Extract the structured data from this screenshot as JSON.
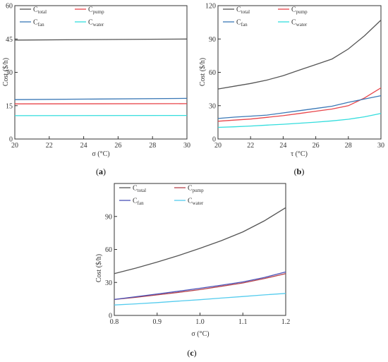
{
  "chart_data": [
    {
      "type": "line",
      "panel_label": "a",
      "x": [
        20,
        30
      ],
      "xlim": [
        20,
        30
      ],
      "ylim": [
        0,
        60
      ],
      "xticks": [
        20,
        22,
        24,
        26,
        28,
        30
      ],
      "yticks": [
        0,
        15,
        30,
        45,
        60
      ],
      "xlabel": "σ (°C)",
      "ylabel": "Cost ($/h)",
      "legend_placement": "top-left",
      "series": [
        {
          "name": "C",
          "sub": "total",
          "color": "#555555",
          "x": [
            20,
            30
          ],
          "values": [
            44.5,
            45.0
          ]
        },
        {
          "name": "C",
          "sub": "pump",
          "color": "#e8454a",
          "x": [
            20,
            30
          ],
          "values": [
            15.8,
            15.9
          ]
        },
        {
          "name": "C",
          "sub": "fan",
          "color": "#3a78b6",
          "x": [
            20,
            30
          ],
          "values": [
            17.7,
            18.3
          ]
        },
        {
          "name": "C",
          "sub": "water",
          "color": "#33dddd",
          "x": [
            20,
            30
          ],
          "values": [
            10.5,
            10.6
          ]
        }
      ]
    },
    {
      "type": "line",
      "panel_label": "b",
      "xlim": [
        20,
        30
      ],
      "ylim": [
        0,
        120
      ],
      "xticks": [
        20,
        22,
        24,
        26,
        28,
        30
      ],
      "yticks": [
        0,
        30,
        60,
        90,
        120
      ],
      "xlabel": "τ (°C)",
      "ylabel": "Cost ($/h)",
      "legend_placement": "top-left",
      "series": [
        {
          "name": "C",
          "sub": "total",
          "color": "#555555",
          "x": [
            20,
            21,
            22,
            23,
            24,
            25,
            26,
            27,
            28,
            29,
            30
          ],
          "values": [
            45,
            47.5,
            50,
            53,
            57,
            62,
            67,
            72,
            81,
            93,
            107
          ]
        },
        {
          "name": "C",
          "sub": "pump",
          "color": "#e8454a",
          "x": [
            20,
            21,
            22,
            23,
            24,
            25,
            26,
            27,
            28,
            29,
            30
          ],
          "values": [
            16,
            17,
            18,
            19.5,
            21,
            23,
            25,
            27,
            30,
            37,
            46
          ]
        },
        {
          "name": "C",
          "sub": "fan",
          "color": "#3a78b6",
          "x": [
            20,
            21,
            22,
            23,
            24,
            25,
            26,
            27,
            28,
            29,
            30
          ],
          "values": [
            18.5,
            19.7,
            20.6,
            21.5,
            23.5,
            25.5,
            27.5,
            29.5,
            33,
            36,
            39
          ]
        },
        {
          "name": "C",
          "sub": "water",
          "color": "#33dddd",
          "x": [
            20,
            21,
            22,
            23,
            24,
            25,
            26,
            27,
            28,
            29,
            30
          ],
          "values": [
            10.5,
            11,
            11.7,
            12.5,
            13.3,
            14.2,
            15.2,
            16.3,
            17.8,
            20,
            23
          ]
        }
      ]
    },
    {
      "type": "line",
      "panel_label": "c",
      "xlim": [
        0.8,
        1.2
      ],
      "ylim": [
        0,
        120
      ],
      "xticks": [
        0.8,
        0.9,
        1.0,
        1.1,
        1.2
      ],
      "xtick_labels": [
        "0.8",
        "0.9",
        "1.0",
        "1.1",
        "1.2"
      ],
      "yticks": [
        0,
        30,
        60,
        90
      ],
      "xlabel": "σ (°C)",
      "ylabel": "Cost ($/h)",
      "legend_placement": "top-left",
      "series": [
        {
          "name": "C",
          "sub": "total",
          "color": "#555555",
          "x": [
            0.8,
            0.85,
            0.9,
            0.95,
            1.0,
            1.05,
            1.1,
            1.15,
            1.2
          ],
          "values": [
            38,
            43,
            48.5,
            54.5,
            61,
            68,
            76,
            86,
            98
          ]
        },
        {
          "name": "C",
          "sub": "pump",
          "color": "#b5414a",
          "x": [
            0.8,
            0.85,
            0.9,
            0.95,
            1.0,
            1.05,
            1.1,
            1.15,
            1.2
          ],
          "values": [
            14.5,
            16.5,
            18.7,
            21,
            23.5,
            26.5,
            29.5,
            33.5,
            38
          ]
        },
        {
          "name": "C",
          "sub": "fan",
          "color": "#4a52b8",
          "x": [
            0.8,
            0.85,
            0.9,
            0.95,
            1.0,
            1.05,
            1.1,
            1.15,
            1.2
          ],
          "values": [
            14.5,
            17,
            19.5,
            22,
            24.7,
            27.5,
            30.5,
            34.5,
            39.5
          ]
        },
        {
          "name": "C",
          "sub": "water",
          "color": "#55ccee",
          "x": [
            0.8,
            0.85,
            0.9,
            0.95,
            1.0,
            1.05,
            1.1,
            1.15,
            1.2
          ],
          "values": [
            9.5,
            10.5,
            11.7,
            13,
            14.3,
            15.8,
            17.2,
            18.7,
            20
          ]
        }
      ]
    }
  ]
}
